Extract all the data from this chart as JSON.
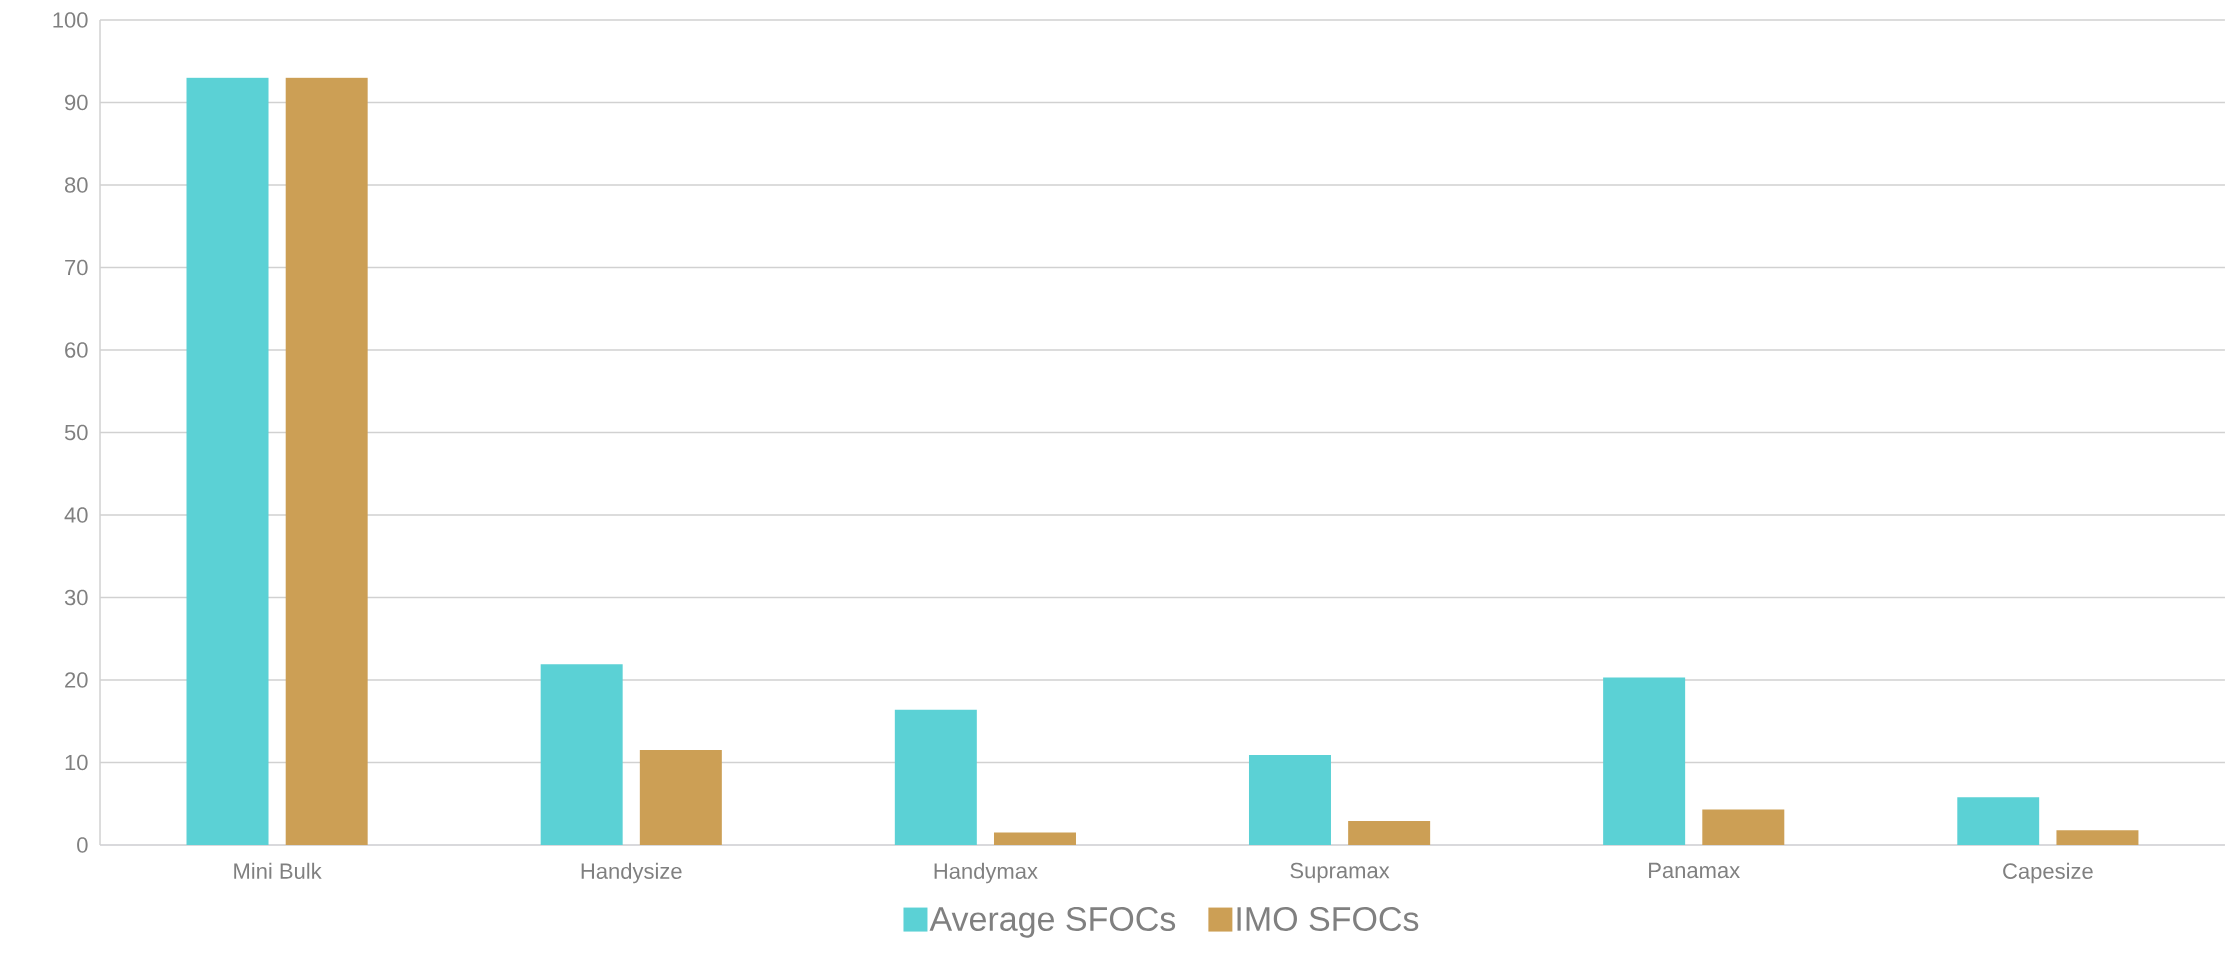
{
  "chart_data": {
    "type": "bar",
    "categories": [
      "Mini Bulk",
      "Handysize",
      "Handymax",
      "Supramax",
      "Panamax",
      "Capesize"
    ],
    "series": [
      {
        "name": "Average SFOCs",
        "color": "#5bd1d5",
        "values": [
          93,
          21.9,
          16.4,
          10.9,
          20.3,
          5.8
        ]
      },
      {
        "name": "IMO SFOCs",
        "color": "#cc9f55",
        "values": [
          93,
          11.5,
          1.5,
          2.9,
          4.3,
          1.8
        ]
      }
    ],
    "ylim": [
      0,
      100
    ],
    "yticks": [
      0,
      10,
      20,
      30,
      40,
      50,
      60,
      70,
      80,
      90,
      100
    ],
    "grid": "y",
    "legend": "bottom"
  }
}
